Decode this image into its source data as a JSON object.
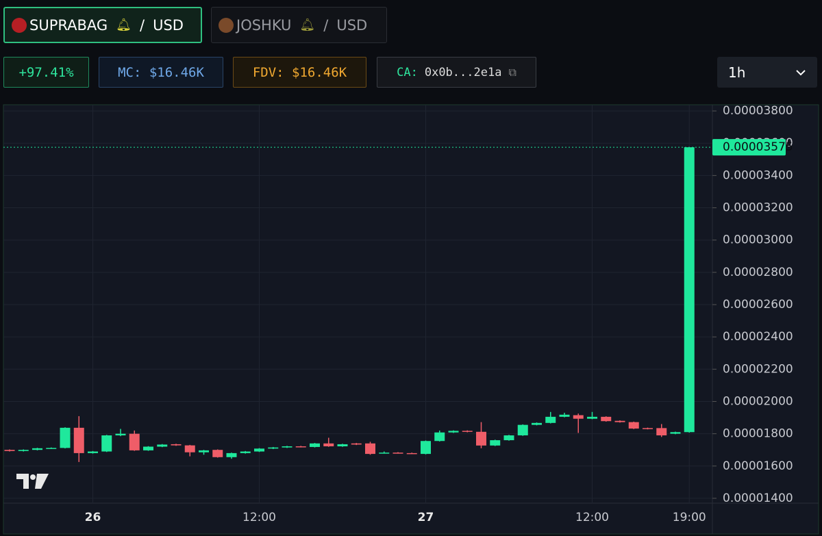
{
  "tabs": [
    {
      "name": "SUPRABAG",
      "separator": "/",
      "quote": "USD"
    },
    {
      "name": "JOSHKU",
      "separator": "/",
      "quote": "USD"
    }
  ],
  "stats": {
    "change": "+97.41%",
    "market_cap": "MC: $16.46K",
    "fdv": "FDV: $16.46K",
    "contract_label": "CA:",
    "contract": "0x0b...2e1a"
  },
  "interval": "1h",
  "chart_data": {
    "type": "candlestick",
    "categories": [
      null,
      null,
      null,
      null,
      null,
      null,
      "26",
      null,
      null,
      null,
      null,
      null,
      null,
      null,
      null,
      null,
      null,
      null,
      "12:00",
      null,
      null,
      null,
      null,
      null,
      null,
      null,
      null,
      null,
      null,
      null,
      "27",
      null,
      null,
      null,
      null,
      null,
      null,
      null,
      null,
      null,
      null,
      null,
      "12:00",
      null,
      null,
      null,
      null,
      null,
      null,
      "19:00"
    ],
    "open": [
      1.7e-05,
      1.693e-05,
      1.7e-05,
      1.71e-05,
      1.712e-05,
      1.837e-05,
      1.68e-05,
      1.69e-05,
      1.79e-05,
      1.8e-05,
      1.697e-05,
      1.72e-05,
      1.735e-05,
      1.728e-05,
      1.685e-05,
      1.7e-05,
      1.655e-05,
      1.68e-05,
      1.69e-05,
      1.708e-05,
      1.715e-05,
      1.722e-05,
      1.718e-05,
      1.74e-05,
      1.722e-05,
      1.74e-05,
      1.74e-05,
      1.68e-05,
      1.683e-05,
      1.68e-05,
      1.675e-05,
      1.755e-05,
      1.808e-05,
      1.818e-05,
      1.812e-05,
      1.727e-05,
      1.76e-05,
      1.79e-05,
      1.855e-05,
      1.867e-05,
      1.905e-05,
      1.915e-05,
      1.893e-05,
      1.905e-05,
      1.88e-05,
      1.872e-05,
      1.835e-05,
      1.835e-05,
      1.8e-05,
      1.81e-05
    ],
    "high": [
      1.703e-05,
      1.703e-05,
      1.713e-05,
      1.715e-05,
      1.84e-05,
      1.909e-05,
      1.693e-05,
      1.793e-05,
      1.83e-05,
      1.82e-05,
      1.723e-05,
      1.736e-05,
      1.738e-05,
      1.731e-05,
      1.7e-05,
      1.703e-05,
      1.683e-05,
      1.693e-05,
      1.711e-05,
      1.718e-05,
      1.725e-05,
      1.725e-05,
      1.743e-05,
      1.775e-05,
      1.738e-05,
      1.743e-05,
      1.75e-05,
      1.69e-05,
      1.686e-05,
      1.683e-05,
      1.758e-05,
      1.82e-05,
      1.821e-05,
      1.821e-05,
      1.872e-05,
      1.763e-05,
      1.793e-05,
      1.858e-05,
      1.87e-05,
      1.935e-05,
      1.93e-05,
      1.925e-05,
      1.935e-05,
      1.908e-05,
      1.883e-05,
      1.875e-05,
      1.838e-05,
      1.86e-05,
      1.813e-05,
      3.575e-05
    ],
    "low": [
      1.69e-05,
      1.69e-05,
      1.697e-05,
      1.707e-05,
      1.709e-05,
      1.625e-05,
      1.677e-05,
      1.687e-05,
      1.785e-05,
      1.694e-05,
      1.694e-05,
      1.717e-05,
      1.725e-05,
      1.66e-05,
      1.67e-05,
      1.652e-05,
      1.645e-05,
      1.677e-05,
      1.687e-05,
      1.705e-05,
      1.712e-05,
      1.715e-05,
      1.715e-05,
      1.719e-05,
      1.719e-05,
      1.73e-05,
      1.67e-05,
      1.677e-05,
      1.677e-05,
      1.675e-05,
      1.672e-05,
      1.752e-05,
      1.805e-05,
      1.809e-05,
      1.71e-05,
      1.724e-05,
      1.757e-05,
      1.787e-05,
      1.852e-05,
      1.864e-05,
      1.902e-05,
      1.805e-05,
      1.89e-05,
      1.875e-05,
      1.869e-05,
      1.829e-05,
      1.827e-05,
      1.78e-05,
      1.797e-05,
      1.807e-05
    ],
    "close": [
      1.693e-05,
      1.7e-05,
      1.71e-05,
      1.712e-05,
      1.837e-05,
      1.68e-05,
      1.69e-05,
      1.79e-05,
      1.8e-05,
      1.697e-05,
      1.72e-05,
      1.733e-05,
      1.728e-05,
      1.685e-05,
      1.697e-05,
      1.655e-05,
      1.68e-05,
      1.69e-05,
      1.708e-05,
      1.715e-05,
      1.722e-05,
      1.718e-05,
      1.74e-05,
      1.722e-05,
      1.735e-05,
      1.733e-05,
      1.675e-05,
      1.683e-05,
      1.68e-05,
      1.678e-05,
      1.755e-05,
      1.808e-05,
      1.818e-05,
      1.812e-05,
      1.727e-05,
      1.76e-05,
      1.79e-05,
      1.855e-05,
      1.867e-05,
      1.905e-05,
      1.918e-05,
      1.893e-05,
      1.905e-05,
      1.878e-05,
      1.872e-05,
      1.832e-05,
      1.83e-05,
      1.79e-05,
      1.81e-05,
      3.575e-05
    ],
    "up_color": "#1fe89c",
    "down_color": "#ef5d68",
    "ylim": [
      1.37e-05,
      3.83e-05
    ],
    "yticks": [
      {
        "value": 1.4e-05,
        "label": "0.00001400"
      },
      {
        "value": 1.6e-05,
        "label": "0.00001600"
      },
      {
        "value": 1.8e-05,
        "label": "0.00001800"
      },
      {
        "value": 2e-05,
        "label": "0.00002000"
      },
      {
        "value": 2.2e-05,
        "label": "0.00002200"
      },
      {
        "value": 2.4e-05,
        "label": "0.00002400"
      },
      {
        "value": 2.6e-05,
        "label": "0.00002600"
      },
      {
        "value": 2.8e-05,
        "label": "0.00002800"
      },
      {
        "value": 3e-05,
        "label": "0.00003000"
      },
      {
        "value": 3.2e-05,
        "label": "0.00003200"
      },
      {
        "value": 3.4e-05,
        "label": "0.00003400"
      },
      {
        "value": 3.6e-05,
        "label": "0.00003600"
      },
      {
        "value": 3.8e-05,
        "label": "0.00003800"
      }
    ],
    "grid": true
  }
}
